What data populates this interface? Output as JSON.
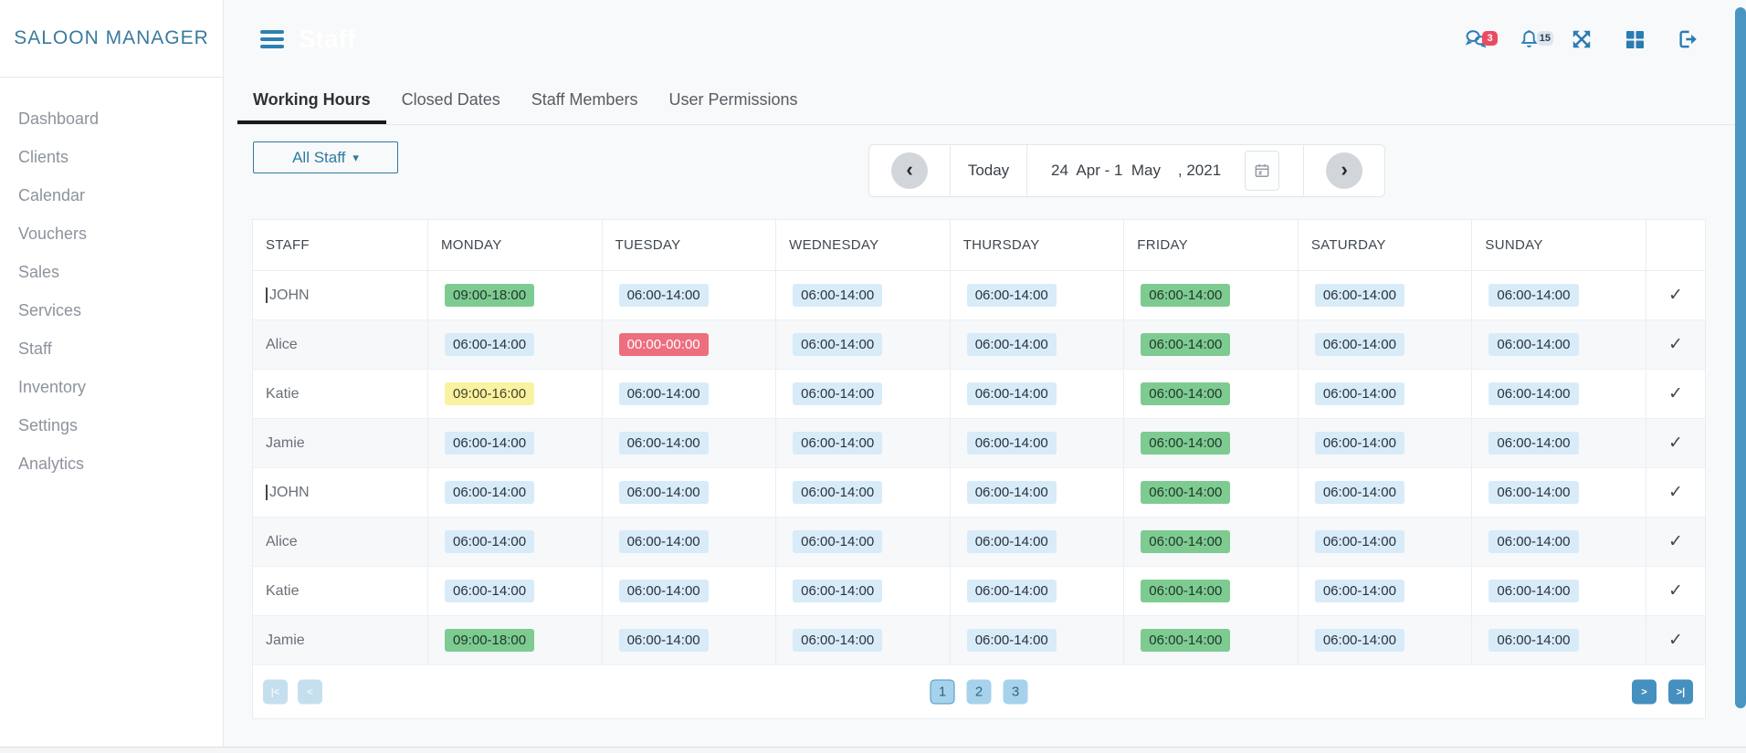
{
  "brand": "SALOON MANAGER",
  "sidebar": {
    "items": [
      "Dashboard",
      "Clients",
      "Calendar",
      "Vouchers",
      "Sales",
      "Services",
      "Staff",
      "Inventory",
      "Settings",
      "Analytics"
    ]
  },
  "topbar": {
    "title": "Staff",
    "chat_badge": "3",
    "notification_badge": "15"
  },
  "icons": {
    "dropdown_caret": "▾",
    "chevron_left": "‹",
    "chevron_right": "›",
    "check": "✓"
  },
  "tabs": [
    {
      "label": "Working Hours",
      "active": true
    },
    {
      "label": "Closed Dates",
      "active": false
    },
    {
      "label": "Staff Members",
      "active": false
    },
    {
      "label": "User Permissions",
      "active": false
    }
  ],
  "staff_filter": {
    "label": "All Staff"
  },
  "date_nav": {
    "today": "Today",
    "range": "24  Apr - 1  May    , 2021",
    "year": "2021"
  },
  "table": {
    "columns": [
      "STAFF",
      "MONDAY",
      "TUESDAY",
      "WEDNESDAY",
      "THURSDAY",
      "FRIDAY",
      "SATURDAY",
      "SUNDAY",
      ""
    ],
    "rows": [
      {
        "name": "JOHN",
        "caret": true,
        "checked": true,
        "cells": [
          {
            "t": "09:00-18:00",
            "v": "green"
          },
          {
            "t": "06:00-14:00"
          },
          {
            "t": "06:00-14:00"
          },
          {
            "t": "06:00-14:00"
          },
          {
            "t": "06:00-14:00",
            "v": "green"
          },
          {
            "t": "06:00-14:00"
          },
          {
            "t": "06:00-14:00"
          }
        ]
      },
      {
        "name": "Alice",
        "caret": false,
        "checked": true,
        "cells": [
          {
            "t": "06:00-14:00"
          },
          {
            "t": "00:00-00:00",
            "v": "red"
          },
          {
            "t": "06:00-14:00"
          },
          {
            "t": "06:00-14:00"
          },
          {
            "t": "06:00-14:00",
            "v": "green"
          },
          {
            "t": "06:00-14:00"
          },
          {
            "t": "06:00-14:00"
          }
        ]
      },
      {
        "name": "Katie",
        "caret": false,
        "checked": true,
        "cells": [
          {
            "t": "09:00-16:00",
            "v": "yellow"
          },
          {
            "t": "06:00-14:00"
          },
          {
            "t": "06:00-14:00"
          },
          {
            "t": "06:00-14:00"
          },
          {
            "t": "06:00-14:00",
            "v": "green"
          },
          {
            "t": "06:00-14:00"
          },
          {
            "t": "06:00-14:00"
          }
        ]
      },
      {
        "name": "Jamie",
        "caret": false,
        "checked": true,
        "cells": [
          {
            "t": "06:00-14:00"
          },
          {
            "t": "06:00-14:00"
          },
          {
            "t": "06:00-14:00"
          },
          {
            "t": "06:00-14:00"
          },
          {
            "t": "06:00-14:00",
            "v": "green"
          },
          {
            "t": "06:00-14:00"
          },
          {
            "t": "06:00-14:00"
          }
        ]
      },
      {
        "name": "JOHN",
        "caret": true,
        "checked": true,
        "cells": [
          {
            "t": "06:00-14:00"
          },
          {
            "t": "06:00-14:00"
          },
          {
            "t": "06:00-14:00"
          },
          {
            "t": "06:00-14:00"
          },
          {
            "t": "06:00-14:00",
            "v": "green"
          },
          {
            "t": "06:00-14:00"
          },
          {
            "t": "06:00-14:00"
          }
        ]
      },
      {
        "name": "Alice",
        "caret": false,
        "checked": true,
        "cells": [
          {
            "t": "06:00-14:00"
          },
          {
            "t": "06:00-14:00"
          },
          {
            "t": "06:00-14:00"
          },
          {
            "t": "06:00-14:00"
          },
          {
            "t": "06:00-14:00",
            "v": "green"
          },
          {
            "t": "06:00-14:00"
          },
          {
            "t": "06:00-14:00"
          }
        ]
      },
      {
        "name": "Katie",
        "caret": false,
        "checked": true,
        "cells": [
          {
            "t": "06:00-14:00"
          },
          {
            "t": "06:00-14:00"
          },
          {
            "t": "06:00-14:00"
          },
          {
            "t": "06:00-14:00"
          },
          {
            "t": "06:00-14:00",
            "v": "green"
          },
          {
            "t": "06:00-14:00"
          },
          {
            "t": "06:00-14:00"
          }
        ]
      },
      {
        "name": "Jamie",
        "caret": false,
        "checked": true,
        "cells": [
          {
            "t": "09:00-18:00",
            "v": "green"
          },
          {
            "t": "06:00-14:00"
          },
          {
            "t": "06:00-14:00"
          },
          {
            "t": "06:00-14:00"
          },
          {
            "t": "06:00-14:00",
            "v": "green"
          },
          {
            "t": "06:00-14:00"
          },
          {
            "t": "06:00-14:00"
          }
        ]
      }
    ]
  },
  "pagination": {
    "first": "|<",
    "prev": "<",
    "next": ">",
    "last": ">|",
    "pages": [
      {
        "label": "1",
        "active": true
      },
      {
        "label": "2",
        "active": false
      },
      {
        "label": "3",
        "active": false
      }
    ]
  },
  "colors": {
    "accent_blue": "#2b7cb3",
    "brand_teal": "#3a7a9e",
    "badge_red_bg": "#ea4b62",
    "time_green": "#7ecb92",
    "time_yellow": "#f9f3a1",
    "time_red": "#ed6e7d",
    "time_blue": "#d8ebf8",
    "scrollbar": "#4a96c2"
  }
}
